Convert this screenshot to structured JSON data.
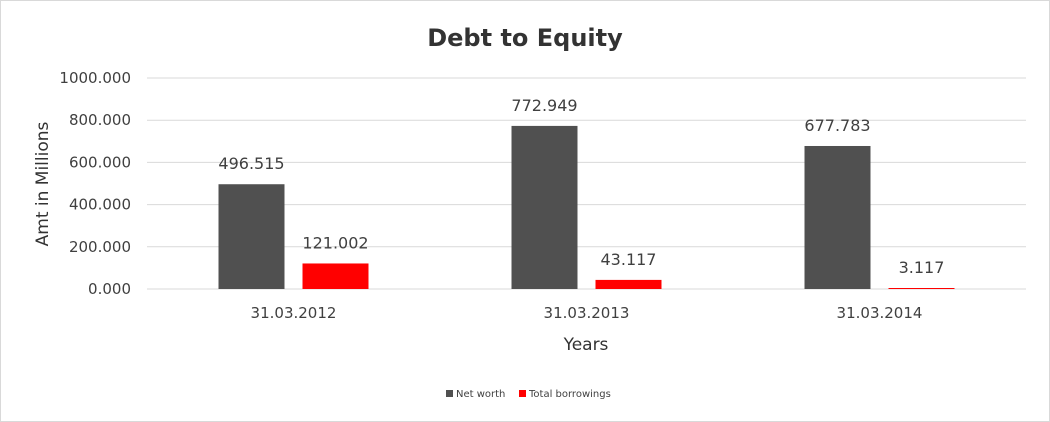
{
  "chart_data": {
    "type": "bar",
    "title": "Debt to Equity",
    "xlabel": "Years",
    "ylabel": "Amt in Millions",
    "categories": [
      "31.03.2012",
      "31.03.2013",
      "31.03.2014"
    ],
    "series": [
      {
        "name": "Net worth",
        "values": [
          496.515,
          772.949,
          677.783
        ],
        "color": "#505050"
      },
      {
        "name": "Total borrowings",
        "values": [
          121.002,
          43.117,
          3.117
        ],
        "color": "#ff0000"
      }
    ],
    "data_labels": [
      [
        "496.515",
        "772.949",
        "677.783"
      ],
      [
        "121.002",
        "43.117",
        "3.117"
      ]
    ],
    "ylim": [
      0,
      1000
    ],
    "yticks": [
      0,
      200,
      400,
      600,
      800,
      1000
    ],
    "ytick_labels": [
      "0.000",
      "200.000",
      "400.000",
      "600.000",
      "800.000",
      "1000.000"
    ],
    "grid": true,
    "legend_position": "bottom"
  }
}
